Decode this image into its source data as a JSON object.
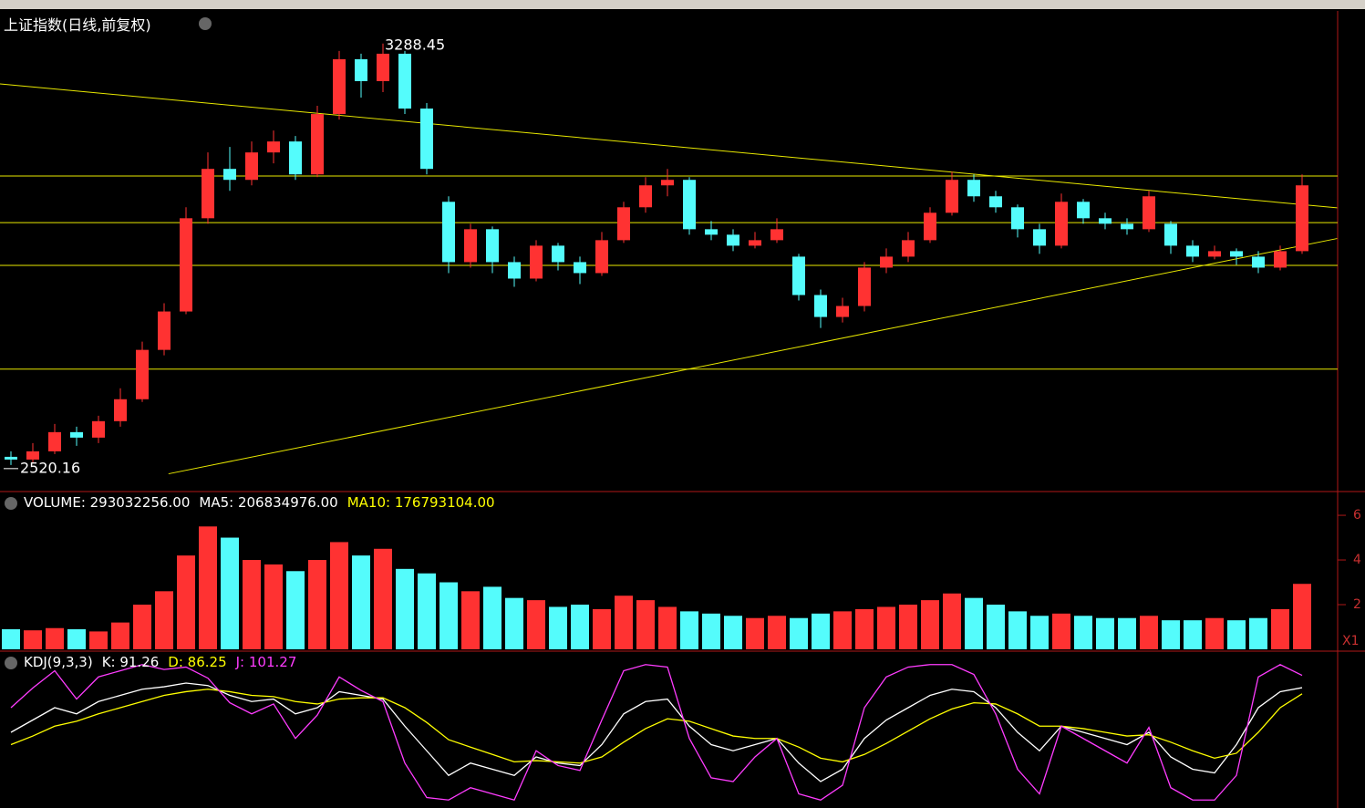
{
  "chart_data": [
    {
      "type": "candlestick",
      "title": "上证指数(日线,前复权)",
      "open": [
        2535,
        2530,
        2545,
        2580,
        2570,
        2600,
        2640,
        2730,
        2800,
        2970,
        3060,
        3040,
        3090,
        3110,
        3050,
        3160,
        3260,
        3220,
        3270,
        3170,
        3000,
        2890,
        2950,
        2890,
        2860,
        2920,
        2890,
        2870,
        2930,
        2990,
        3030,
        3040,
        2950,
        2940,
        2920,
        2930,
        2900,
        2830,
        2790,
        2810,
        2880,
        2900,
        2930,
        2980,
        3040,
        3010,
        2990,
        2950,
        2920,
        3000,
        2970,
        2960,
        2950,
        2960,
        2920,
        2900,
        2910,
        2900,
        2880,
        2910
      ],
      "close": [
        2530,
        2545,
        2580,
        2570,
        2600,
        2640,
        2730,
        2800,
        2970,
        3060,
        3040,
        3090,
        3110,
        3050,
        3160,
        3260,
        3220,
        3270,
        3170,
        3060,
        2890,
        2950,
        2890,
        2860,
        2920,
        2890,
        2870,
        2930,
        2990,
        3030,
        3040,
        2950,
        2940,
        2920,
        2930,
        2950,
        2830,
        2790,
        2810,
        2880,
        2900,
        2930,
        2980,
        3040,
        3010,
        2990,
        2950,
        2920,
        3000,
        2970,
        2960,
        2950,
        3010,
        2920,
        2900,
        2910,
        2900,
        2880,
        2910,
        3030
      ],
      "high": [
        2545,
        2560,
        2595,
        2590,
        2610,
        2660,
        2745,
        2815,
        2990,
        3090,
        3100,
        3110,
        3130,
        3120,
        3175,
        3275,
        3270,
        3288.45,
        3275,
        3180,
        3010,
        2960,
        2955,
        2900,
        2930,
        2925,
        2900,
        2945,
        3000,
        3045,
        3060,
        3045,
        2965,
        2950,
        2945,
        2970,
        2905,
        2840,
        2825,
        2890,
        2915,
        2945,
        2990,
        3055,
        3050,
        3020,
        2995,
        2960,
        3015,
        3005,
        2980,
        2970,
        3020,
        2965,
        2930,
        2920,
        2915,
        2910,
        2920,
        3050
      ],
      "low": [
        2520.16,
        2525,
        2540,
        2555,
        2560,
        2590,
        2635,
        2720,
        2795,
        2960,
        3020,
        3030,
        3070,
        3040,
        3045,
        3150,
        3190,
        3200,
        3160,
        3050,
        2870,
        2880,
        2870,
        2845,
        2855,
        2875,
        2850,
        2865,
        2925,
        2980,
        3010,
        2940,
        2930,
        2910,
        2915,
        2925,
        2820,
        2770,
        2780,
        2800,
        2870,
        2890,
        2925,
        2975,
        3000,
        2980,
        2935,
        2905,
        2915,
        2960,
        2950,
        2940,
        2945,
        2905,
        2890,
        2895,
        2885,
        2870,
        2875,
        2905
      ],
      "ylim": [
        2475,
        3348
      ],
      "up_color": "#ff3232",
      "down_color": "#54fcfc",
      "line_color": "#e8e800",
      "hlines": [
        3047,
        2962,
        2884,
        2695
      ],
      "trendlines": [
        {
          "x": [
            -0.5,
            60.6
          ],
          "y": [
            3215,
            2989
          ]
        },
        {
          "x": [
            7.2,
            60.6
          ],
          "y": [
            2504,
            2933
          ]
        }
      ]
    },
    {
      "type": "bar",
      "legend": [
        {
          "text": "VOLUME: 293032256.00",
          "color": "#ffffff"
        },
        {
          "text": "MA5: 206834976.00",
          "color": "#ffffff"
        },
        {
          "text": "MA10: 176793104.00",
          "color": "#ffff00"
        }
      ],
      "values": [
        90000000,
        85000000,
        95000000,
        90000000,
        80000000,
        120000000,
        200000000,
        260000000,
        420000000,
        550000000,
        500000000,
        400000000,
        380000000,
        350000000,
        400000000,
        480000000,
        420000000,
        450000000,
        360000000,
        340000000,
        300000000,
        260000000,
        280000000,
        230000000,
        220000000,
        190000000,
        200000000,
        180000000,
        240000000,
        220000000,
        190000000,
        170000000,
        160000000,
        150000000,
        140000000,
        150000000,
        140000000,
        160000000,
        170000000,
        180000000,
        190000000,
        200000000,
        220000000,
        250000000,
        230000000,
        200000000,
        170000000,
        150000000,
        160000000,
        150000000,
        140000000,
        140000000,
        150000000,
        130000000,
        130000000,
        140000000,
        130000000,
        140000000,
        180000000,
        293032256
      ],
      "ylim": [
        0,
        690000000
      ],
      "yticks": [
        {
          "value": 200000000,
          "label": "2"
        },
        {
          "value": 400000000,
          "label": "4"
        },
        {
          "value": 600000000,
          "label": "6"
        }
      ],
      "scale_label": "X1"
    },
    {
      "type": "line",
      "legend": [
        {
          "text": "KDJ(9,3,3)",
          "color": "#ffffff"
        },
        {
          "text": "K: 91.26",
          "color": "#ffffff"
        },
        {
          "text": "D: 86.25",
          "color": "#ffff00"
        },
        {
          "text": "J: 101.27",
          "color": "#ff3cff"
        }
      ],
      "ylim": [
        -5,
        115
      ],
      "series": [
        {
          "color": "#ffffff",
          "values": [
            55,
            65,
            75,
            70,
            80,
            85,
            90,
            92,
            95,
            93,
            85,
            80,
            82,
            70,
            75,
            88,
            85,
            82,
            60,
            40,
            20,
            30,
            25,
            20,
            35,
            30,
            28,
            45,
            70,
            80,
            82,
            60,
            45,
            40,
            45,
            50,
            30,
            15,
            25,
            50,
            65,
            75,
            85,
            90,
            88,
            75,
            55,
            40,
            60,
            55,
            50,
            45,
            55,
            35,
            25,
            22,
            45,
            75,
            88,
            91.26
          ]
        },
        {
          "color": "#ffff00",
          "values": [
            45,
            52,
            60,
            64,
            70,
            75,
            80,
            85,
            88,
            90,
            88,
            85,
            84,
            80,
            78,
            82,
            83,
            83,
            75,
            63,
            49,
            43,
            37,
            31,
            32,
            31,
            30,
            35,
            47,
            58,
            66,
            64,
            58,
            52,
            50,
            50,
            43,
            34,
            31,
            37,
            46,
            56,
            66,
            74,
            79,
            78,
            70,
            60,
            60,
            58,
            55,
            52,
            53,
            47,
            40,
            34,
            38,
            55,
            75,
            86.25
          ]
        },
        {
          "color": "#ff3cff",
          "values": [
            75,
            91,
            105,
            82,
            100,
            105,
            110,
            106,
            108,
            99,
            79,
            70,
            78,
            50,
            69,
            100,
            89,
            80,
            30,
            2,
            0,
            10,
            5,
            0,
            40,
            28,
            24,
            65,
            105,
            110,
            108,
            50,
            18,
            15,
            35,
            50,
            5,
            0,
            12,
            75,
            100,
            108,
            110,
            110,
            102,
            70,
            25,
            5,
            60,
            50,
            40,
            30,
            59,
            10,
            0,
            0,
            20,
            100,
            110,
            101.27
          ]
        }
      ]
    }
  ]
}
